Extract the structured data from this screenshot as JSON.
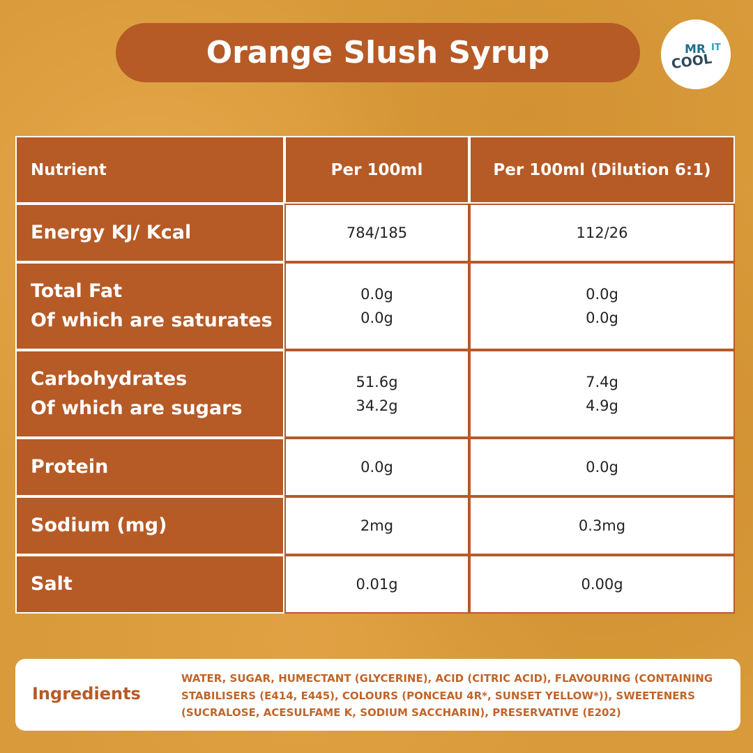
{
  "header": {
    "title": "Orange Slush Syrup"
  },
  "logo": {
    "lines": [
      "MR",
      "COOL",
      "IT"
    ]
  },
  "table": {
    "columns": [
      "Nutrient",
      "Per 100ml",
      "Per 100ml (Dilution 6:1)"
    ],
    "rows": [
      [
        [
          "Energy KJ/ Kcal"
        ],
        [
          "784/185"
        ],
        [
          "112/26"
        ]
      ],
      [
        [
          "Total Fat",
          "Of which are saturates"
        ],
        [
          "0.0g",
          "0.0g"
        ],
        [
          "0.0g",
          "0.0g"
        ]
      ],
      [
        [
          "Carbohydrates",
          "Of which are sugars"
        ],
        [
          "51.6g",
          "34.2g"
        ],
        [
          "7.4g",
          "4.9g"
        ]
      ],
      [
        [
          "Protein"
        ],
        [
          "0.0g"
        ],
        [
          "0.0g"
        ]
      ],
      [
        [
          "Sodium (mg)"
        ],
        [
          "2mg"
        ],
        [
          "0.3mg"
        ]
      ],
      [
        [
          "Salt"
        ],
        [
          "0.01g"
        ],
        [
          "0.00g"
        ]
      ]
    ]
  },
  "ingredients": {
    "label": "Ingredients",
    "lines": [
      "WATER, SUGAR, HUMECTANT (GLYCERINE), ACID (CITRIC ACID), FLAVOURING (CONTAINING",
      "STABILISERS (E414, E445), COLOURS (PONCEAU 4R*, SUNSET YELLOW*)), SWEETENERS",
      "(SUCRALOSE, ACESULFAME K, SODIUM SACCHARIN), PRESERVATIVE (E202)"
    ]
  }
}
